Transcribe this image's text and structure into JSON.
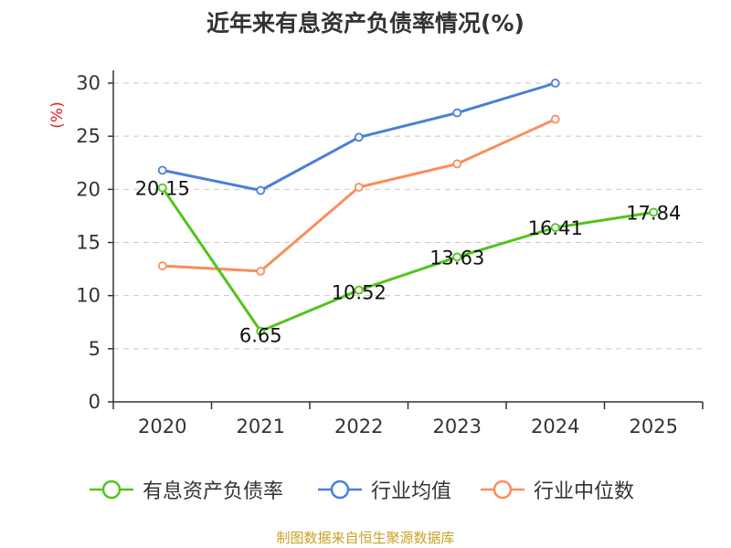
{
  "colors": {
    "green": "#52c41a",
    "blue": "#4a7fd8",
    "orange": "#f98d5b",
    "axis": "#333333",
    "grid": "#c8c8c8",
    "unit": "#e02020",
    "source": "#c8a227"
  },
  "chart_data": {
    "type": "line",
    "title": "近年来有息资产负债率情况(%)",
    "ylabel": "(%)",
    "xlabel": "",
    "categories": [
      "2020",
      "2021",
      "2022",
      "2023",
      "2024",
      "2025"
    ],
    "ylim": [
      0,
      30
    ],
    "yticks": [
      0,
      5,
      10,
      15,
      20,
      25,
      30
    ],
    "grid": true,
    "legend_position": "bottom",
    "series": [
      {
        "name": "有息资产负债率",
        "values": [
          20.15,
          6.65,
          10.52,
          13.63,
          16.41,
          17.84
        ],
        "labels": [
          "20.15",
          "6.65",
          "10.52",
          "13.63",
          "16.41",
          "17.84"
        ]
      },
      {
        "name": "行业均值",
        "values": [
          21.8,
          19.9,
          24.9,
          27.2,
          30.0,
          null
        ]
      },
      {
        "name": "行业中位数",
        "values": [
          12.8,
          12.3,
          20.2,
          22.4,
          26.6,
          null
        ]
      }
    ]
  },
  "source": "制图数据来自恒生聚源数据库"
}
